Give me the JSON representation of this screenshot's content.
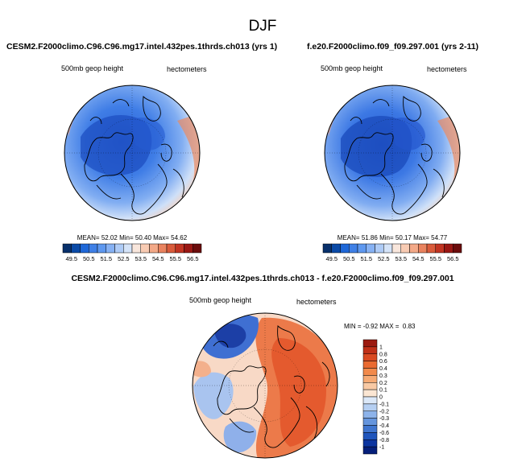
{
  "chart_data": [
    {
      "type": "heatmap",
      "projection": "polar-stereographic",
      "panel": "model-left",
      "title": "DJF",
      "case_label": "CESM2.F2000climo.C96.C96.mg17.intel.432pes.1thrds.ch013 (yrs 1)",
      "variable_label": "500mb geop height",
      "units_label": "hectometers",
      "stats": {
        "mean": "52.02",
        "min": "50.40",
        "max": "54.62"
      },
      "colorbar": {
        "ticks": [
          "49.5",
          "50.5",
          "51.5",
          "52.5",
          "53.5",
          "54.5",
          "55.5",
          "56.5"
        ],
        "colors": [
          "#08306b",
          "#0a4aa7",
          "#1f68d8",
          "#3f80e6",
          "#5e98ef",
          "#86b1f3",
          "#aecbf6",
          "#d4e3f8",
          "#f8e6dc",
          "#f8cbb3",
          "#f3a988",
          "#e9835f",
          "#d95b3b",
          "#c13422",
          "#9a1713",
          "#6b0c0c"
        ]
      }
    },
    {
      "type": "heatmap",
      "projection": "polar-stereographic",
      "panel": "control-right",
      "case_label": "f.e20.F2000climo.f09_f09.297.001 (yrs 2-11)",
      "variable_label": "500mb geop height",
      "units_label": "hectometers",
      "stats": {
        "mean": "51.86",
        "min": "50.17",
        "max": "54.77"
      },
      "colorbar": {
        "ticks": [
          "49.5",
          "50.5",
          "51.5",
          "52.5",
          "53.5",
          "54.5",
          "55.5",
          "56.5"
        ],
        "colors": [
          "#08306b",
          "#0a4aa7",
          "#1f68d8",
          "#3f80e6",
          "#5e98ef",
          "#86b1f3",
          "#aecbf6",
          "#d4e3f8",
          "#f8e6dc",
          "#f8cbb3",
          "#f3a988",
          "#e9835f",
          "#d95b3b",
          "#c13422",
          "#9a1713",
          "#6b0c0c"
        ]
      }
    },
    {
      "type": "heatmap",
      "projection": "polar-stereographic",
      "panel": "difference",
      "case_label": "CESM2.F2000climo.C96.C96.mg17.intel.432pes.1thrds.ch013 - f.e20.F2000climo.f09_f09.297.001",
      "variable_label": "500mb geop height",
      "units_label": "hectometers",
      "stats_text": "MIN = -0.92 MAX =  0.83",
      "colorbar": {
        "ticks": [
          "1",
          "0.8",
          "0.6",
          "0.4",
          "0.3",
          "0.2",
          "0.1",
          "0",
          "-0.1",
          "-0.2",
          "-0.3",
          "-0.4",
          "-0.6",
          "-0.8",
          "-1"
        ],
        "colors": [
          "#9c1a10",
          "#c03018",
          "#d94a22",
          "#ea6a30",
          "#f28a4b",
          "#f6aa74",
          "#f8c9a4",
          "#fbe6d3",
          "#dbe8f8",
          "#b5cff2",
          "#8db3ea",
          "#6595dd",
          "#3f75cf",
          "#1f55bc",
          "#0c35a0",
          "#051f7a"
        ]
      }
    }
  ]
}
